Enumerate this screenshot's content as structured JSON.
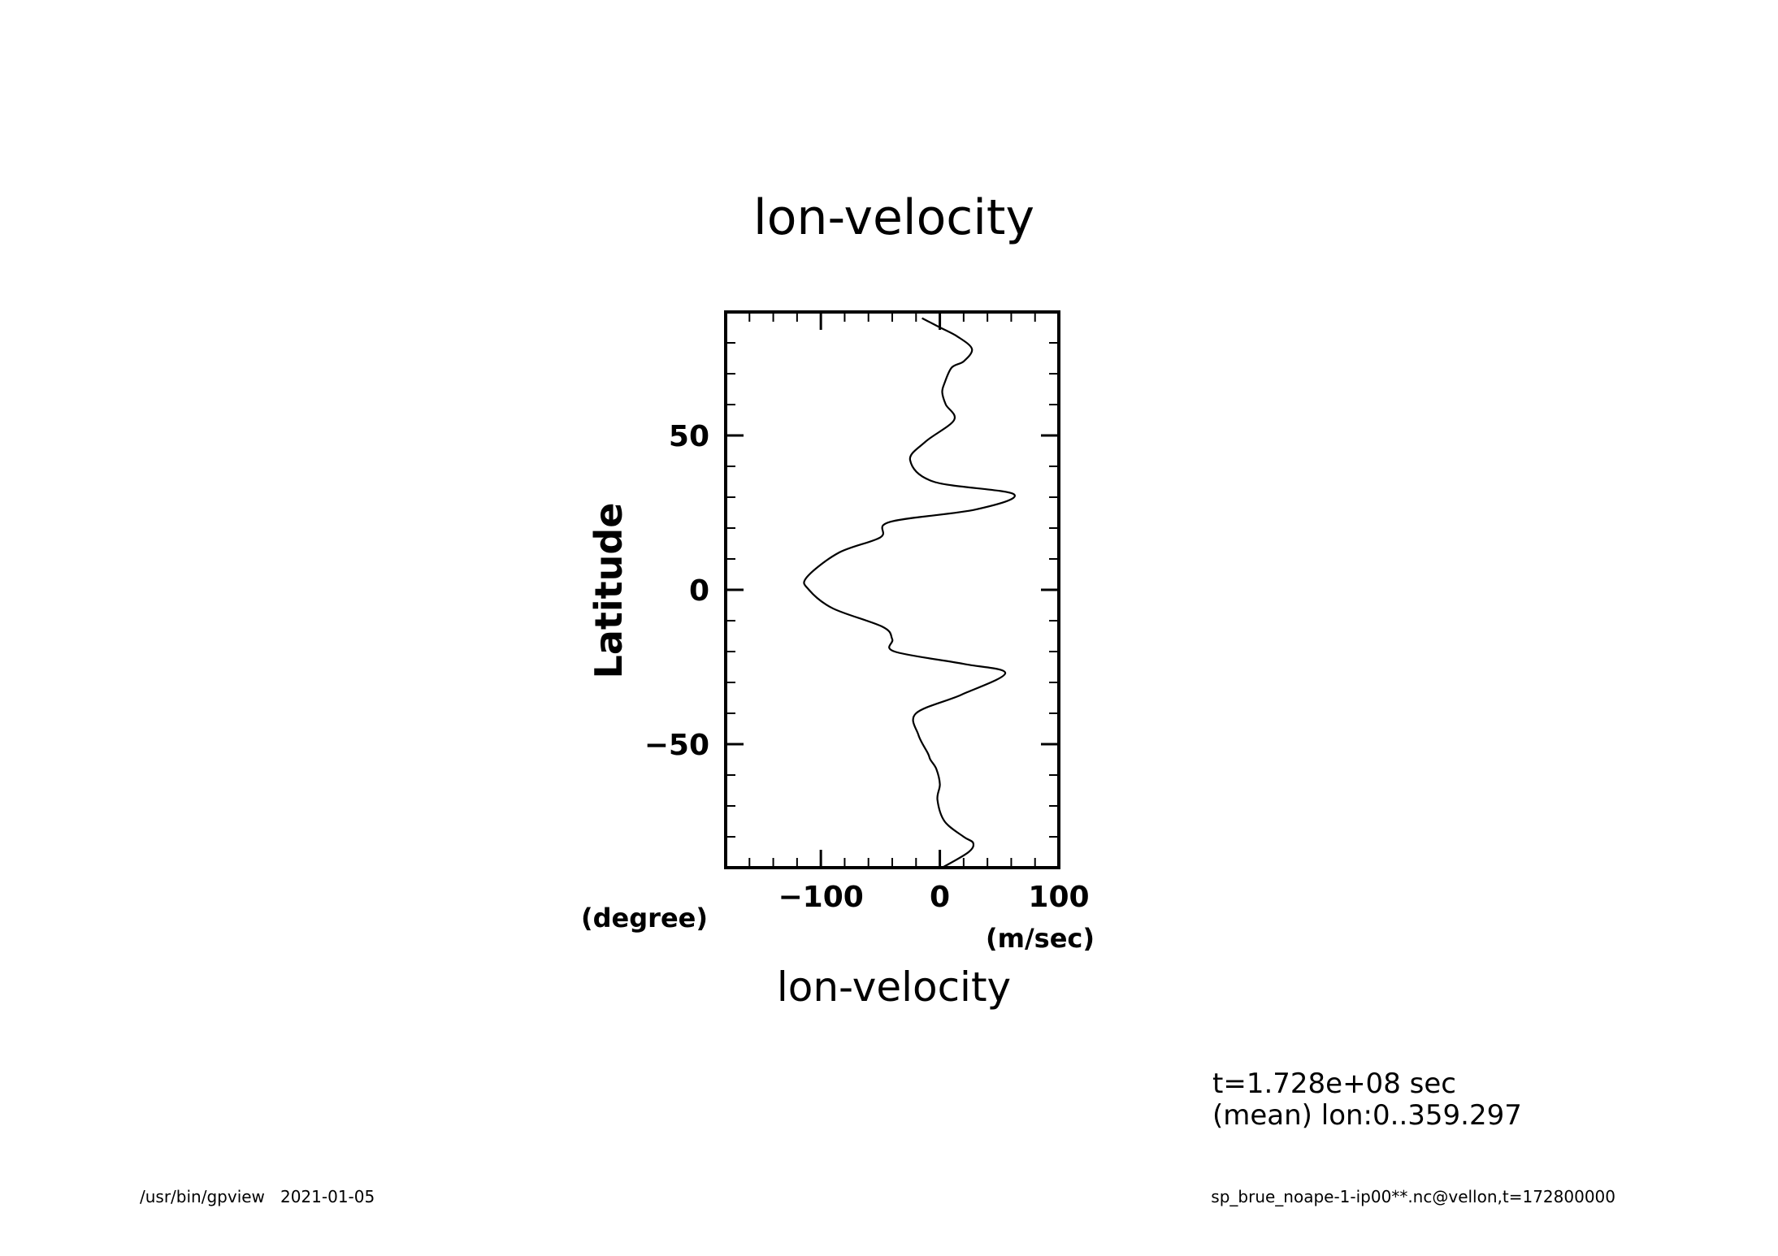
{
  "chart_data": {
    "type": "line",
    "title": "lon-velocity",
    "xlabel": "lon-velocity",
    "xunit": "(m/sec)",
    "ylabel": "Latitude",
    "yunit": "(degree)",
    "xlim": [
      -180,
      100
    ],
    "ylim": [
      -90,
      90
    ],
    "x_ticks": [
      -100,
      0,
      100
    ],
    "x_tick_labels": [
      "−100",
      "0",
      "100"
    ],
    "y_ticks": [
      -50,
      0,
      50
    ],
    "y_tick_labels": [
      "−50",
      "0",
      "50"
    ],
    "grid": false,
    "legend": "none",
    "series": [
      {
        "x": [
          2,
          24,
          28,
          20,
          4,
          -2,
          0,
          -3,
          -8,
          -10,
          -18,
          -20,
          18,
          55,
          20,
          -38,
          -40,
          -48,
          -90,
          -110,
          -112,
          -85,
          -50,
          -42,
          30,
          62,
          -5,
          -25,
          -12,
          12,
          5,
          2,
          4,
          10,
          20,
          27,
          15,
          0,
          -15
        ],
        "y": [
          -90,
          -85,
          -82,
          -80,
          -75,
          -68,
          -63,
          -58,
          -55,
          -53,
          -47,
          -40,
          -34,
          -27,
          -24,
          -20,
          -16,
          -12,
          -6,
          0,
          4,
          12,
          17,
          22,
          26,
          31,
          35,
          42,
          48,
          55,
          60,
          64,
          67,
          72,
          74,
          78,
          82,
          85,
          88
        ]
      }
    ]
  },
  "info": {
    "time": "t=1.728e+08 sec",
    "mean": "(mean) lon:0..359.297"
  },
  "footer": {
    "left": "/usr/bin/gpview   2021-01-05",
    "right": "sp_brue_noape-1-ip00**.nc@vellon,t=172800000"
  }
}
